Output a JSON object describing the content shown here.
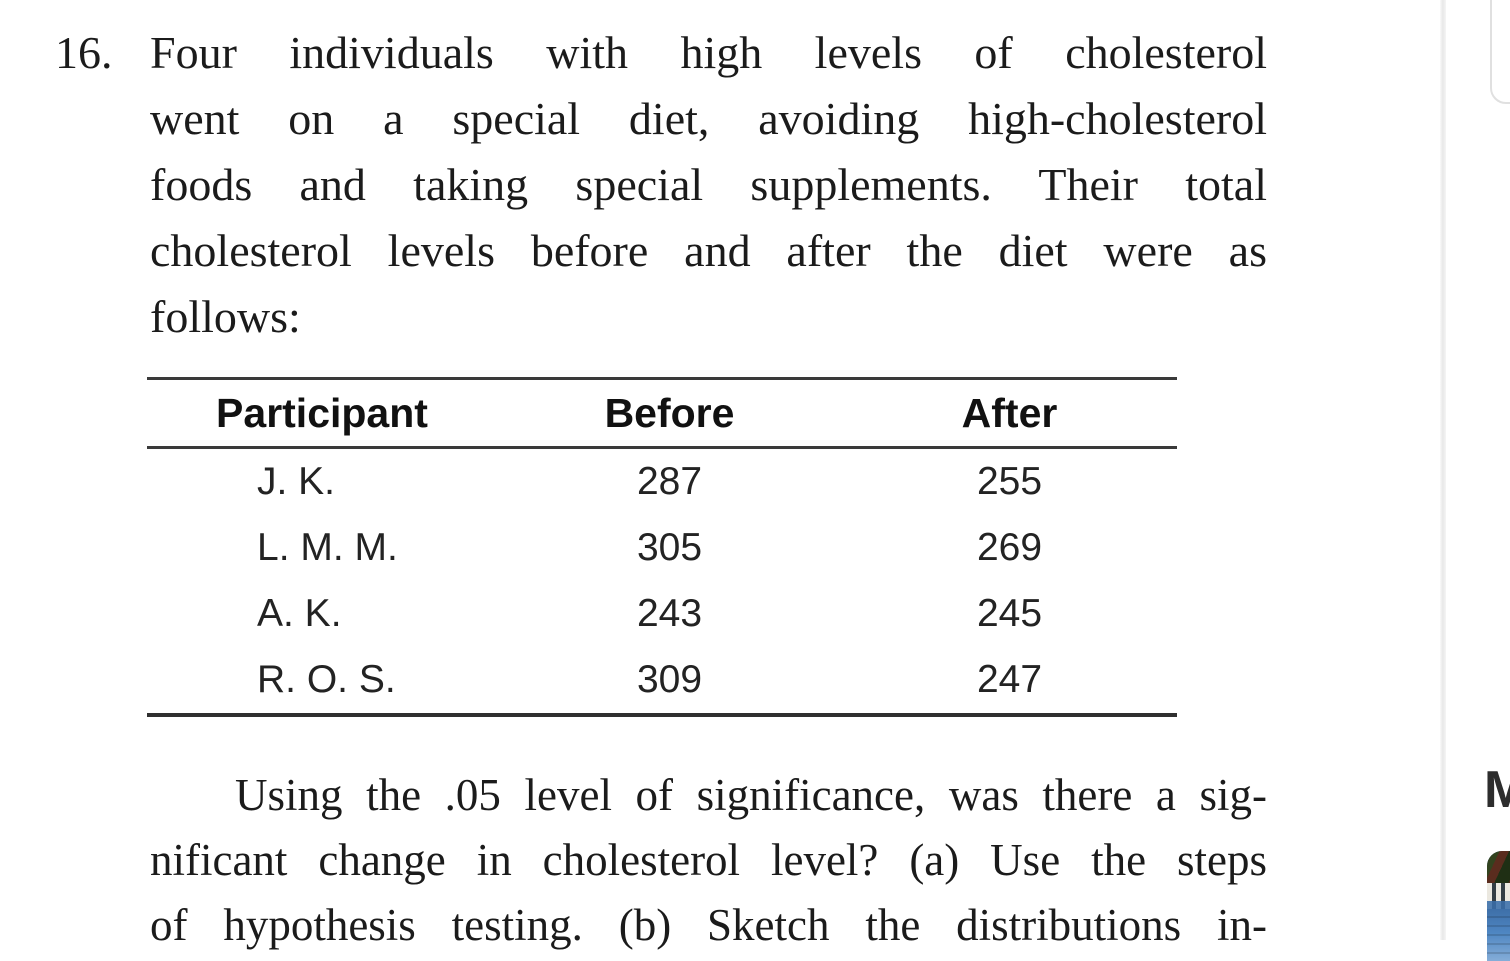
{
  "problem": {
    "number": "16.",
    "intro_lines": [
      "Four individuals with high levels of cholesterol",
      "went on a special diet, avoiding high-cholesterol",
      "foods and taking special supplements. Their total",
      "cholesterol levels before and after the diet were as",
      "follows:"
    ],
    "table": {
      "headers": [
        "Participant",
        "Before",
        "After"
      ],
      "rows": [
        {
          "participant": "J. K.",
          "before": "287",
          "after": "255"
        },
        {
          "participant": "L. M. M.",
          "before": "305",
          "after": "269"
        },
        {
          "participant": "A. K.",
          "before": "243",
          "after": "245"
        },
        {
          "participant": "R. O. S.",
          "before": "309",
          "after": "247"
        }
      ]
    },
    "question_lines": [
      "Using the .05 level of significance, was there a sig-",
      "nificant change in cholesterol level? (a) Use the steps",
      "of hypothesis testing. (b) Sketch the distributions in-"
    ]
  },
  "sidebar": {
    "partial_heading": "M"
  },
  "colors": {
    "text": "#1b1b1b",
    "table_rule": "#3a3a3a",
    "pane_divider": "#e8e8e8",
    "card_border": "#e0e0e0",
    "heading": "#2d2d2d",
    "thumb_blue": "#4e86c2"
  }
}
